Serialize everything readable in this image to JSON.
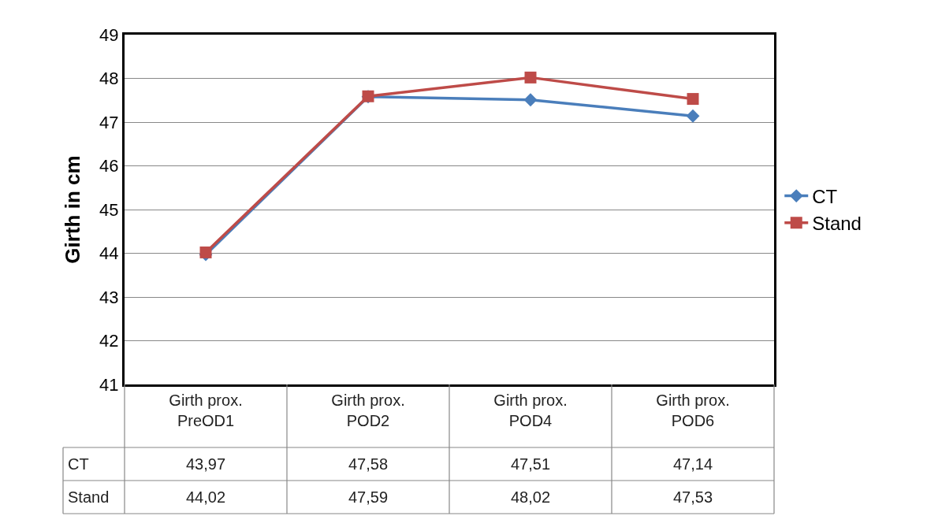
{
  "chart_data": {
    "type": "line",
    "ylabel": "Girth in cm",
    "categories": [
      "Girth prox. PreOD1",
      "Girth prox. POD2",
      "Girth prox. POD4",
      "Girth prox. POD6"
    ],
    "series": [
      {
        "name": "CT",
        "color": "#4a7ebb",
        "marker": "diamond",
        "values": [
          43.97,
          47.58,
          47.51,
          47.14
        ],
        "value_labels": [
          "43,97",
          "47,58",
          "47,51",
          "47,14"
        ]
      },
      {
        "name": "Stand",
        "color": "#be4b48",
        "marker": "square",
        "values": [
          44.02,
          47.59,
          48.02,
          47.53
        ],
        "value_labels": [
          "44,02",
          "47,59",
          "48,02",
          "47,53"
        ]
      }
    ],
    "ylim": [
      41,
      49
    ],
    "yticks": [
      41,
      42,
      43,
      44,
      45,
      46,
      47,
      48,
      49
    ],
    "grid": "y",
    "legend": "right"
  }
}
